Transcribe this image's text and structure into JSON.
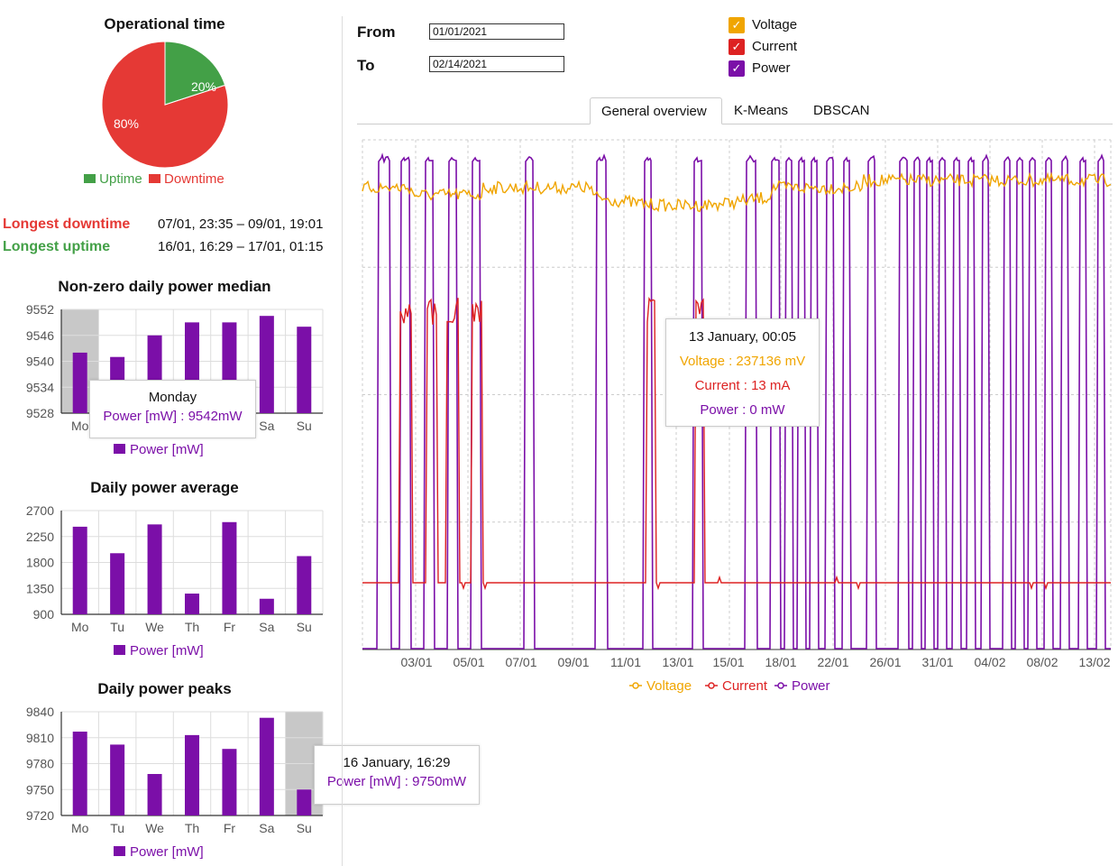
{
  "colors": {
    "uptime": "#43a047",
    "downtime": "#e53935",
    "voltage": "#f0a500",
    "current": "#dd2222",
    "power": "#7b0fa8",
    "highlight": "#c8c8c8"
  },
  "operational": {
    "title": "Operational time",
    "uptime_pct": 20,
    "downtime_pct": 80,
    "uptime_label": "20%",
    "downtime_label": "80%",
    "legend_uptime": "Uptime",
    "legend_downtime": "Downtime"
  },
  "stats": {
    "longest_downtime_label": "Longest downtime",
    "longest_downtime_value": "07/01, 23:35 – 09/01, 19:01",
    "longest_uptime_label": "Longest uptime",
    "longest_uptime_value": "16/01, 16:29 – 17/01, 01:15"
  },
  "filters": {
    "from_label": "From",
    "from_value": "01/01/2021",
    "to_label": "To",
    "to_value": "02/14/2021",
    "voltage": "Voltage",
    "current": "Current",
    "power": "Power"
  },
  "tabs": [
    "General overview",
    "K-Means",
    "DBSCAN"
  ],
  "chart_data": [
    {
      "type": "bar",
      "title": "Non-zero daily power median",
      "categories": [
        "Mo",
        "Tu",
        "We",
        "Th",
        "Fr",
        "Sa",
        "Su"
      ],
      "series": [
        {
          "name": "Power [mW]",
          "values": [
            9542,
            9541,
            9546,
            9549,
            9549,
            9550.5,
            9548
          ]
        }
      ],
      "ylim": [
        9528,
        9552
      ],
      "yticks": [
        9528,
        9534,
        9540,
        9546,
        9552
      ],
      "highlight": 0,
      "legend": "Power [mW]",
      "tooltip": {
        "title": "Monday",
        "text": "Power [mW] : 9542mW"
      }
    },
    {
      "type": "bar",
      "title": "Daily power average",
      "categories": [
        "Mo",
        "Tu",
        "We",
        "Th",
        "Fr",
        "Sa",
        "Su"
      ],
      "series": [
        {
          "name": "Power [mW]",
          "values": [
            2420,
            1960,
            2460,
            1260,
            2500,
            1170,
            1910
          ]
        }
      ],
      "ylim": [
        900,
        2700
      ],
      "yticks": [
        900,
        1350,
        1800,
        2250,
        2700
      ],
      "highlight": null,
      "legend": "Power [mW]"
    },
    {
      "type": "bar",
      "title": "Daily power peaks",
      "categories": [
        "Mo",
        "Tu",
        "We",
        "Th",
        "Fr",
        "Sa",
        "Su"
      ],
      "series": [
        {
          "name": "Power [mW]",
          "values": [
            9817,
            9802,
            9768,
            9813,
            9797,
            9833,
            9750
          ]
        }
      ],
      "ylim": [
        9720,
        9840
      ],
      "yticks": [
        9720,
        9750,
        9780,
        9810,
        9840
      ],
      "highlight": 6,
      "legend": "Power [mW]",
      "tooltip": {
        "title": "16 January, 16:29",
        "text": "Power [mW] : 9750mW"
      }
    },
    {
      "type": "line",
      "x_ticks": [
        "03/01",
        "05/01",
        "07/01",
        "09/01",
        "11/01",
        "13/01",
        "15/01",
        "18/01",
        "22/01",
        "26/01",
        "31/01",
        "04/02",
        "08/02",
        "13/02"
      ],
      "legend": [
        "Voltage",
        "Current",
        "Power"
      ],
      "tooltip": {
        "title": "13 January, 00:05",
        "voltage": "Voltage : 237136 mV",
        "current": "Current : 13 mA",
        "power": "Power : 0 mW"
      }
    }
  ]
}
